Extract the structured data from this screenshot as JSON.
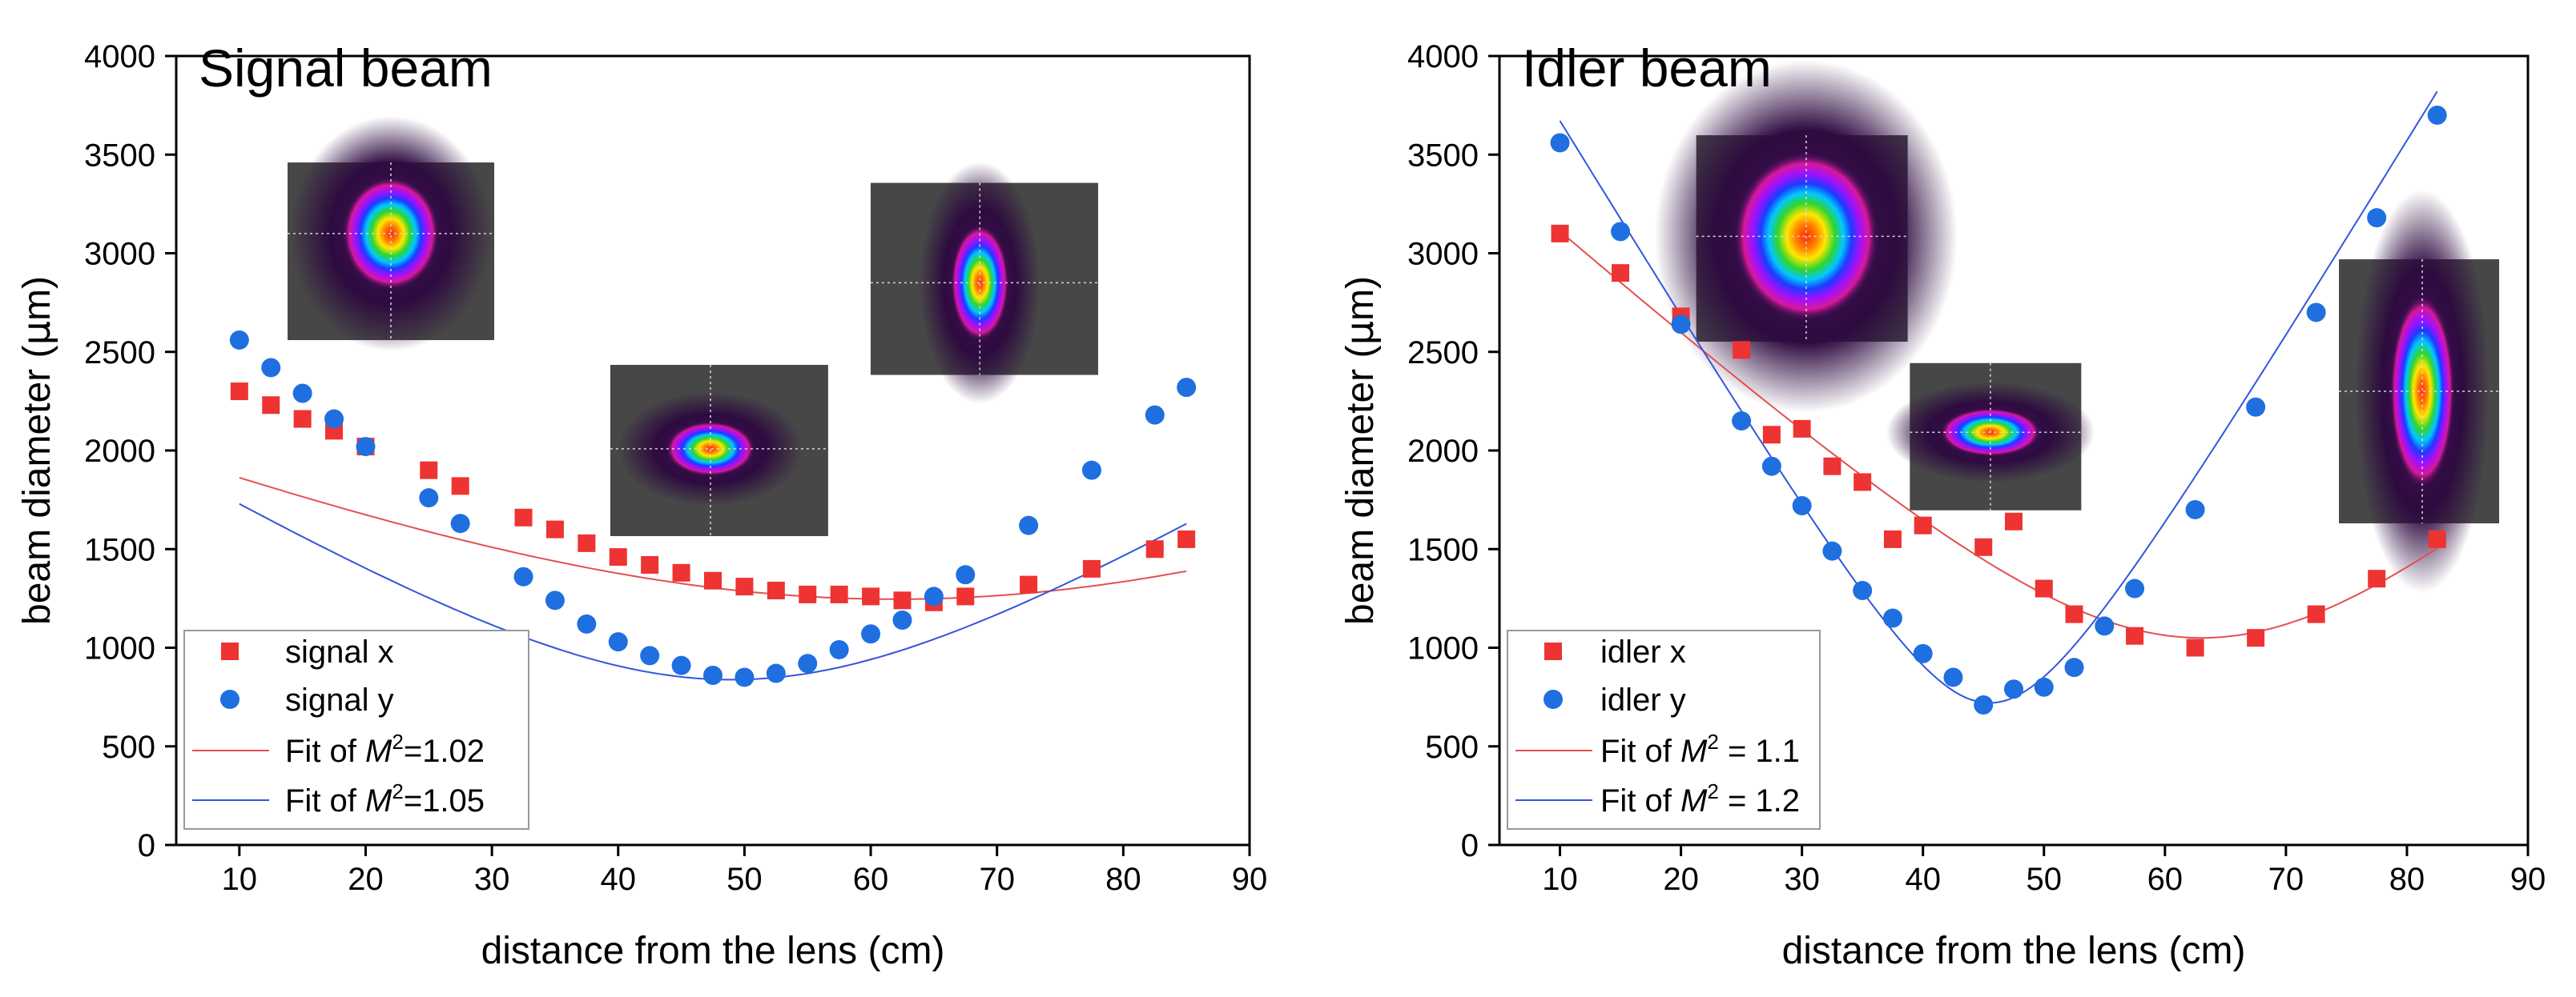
{
  "figure_title": "",
  "colors": {
    "signal_x": "#ee3333",
    "signal_y": "#1f6fe0",
    "fit_x": "#e35050",
    "fit_y": "#3355dd",
    "inset_bg": "#474747"
  },
  "chart_data": [
    {
      "type": "scatter",
      "title": "Signal beam",
      "xlabel": "distance from the lens (cm)",
      "ylabel_pre": "beam diameter (",
      "ylabel_mu": "μ",
      "ylabel_post": "m)",
      "xlim": [
        5,
        90
      ],
      "ylim": [
        0,
        4000
      ],
      "xticks": [
        10,
        20,
        30,
        40,
        50,
        60,
        70,
        80,
        90
      ],
      "yticks": [
        0,
        500,
        1000,
        1500,
        2000,
        2500,
        3000,
        3500,
        4000
      ],
      "x_tick_labels": [
        "10",
        "20",
        "30",
        "40",
        "50",
        "60",
        "70",
        "80",
        "90"
      ],
      "y_tick_labels": [
        "0",
        "500",
        "1000",
        "1500",
        "2000",
        "2500",
        "3000",
        "3500",
        "4000"
      ],
      "series": [
        {
          "name": "signal x",
          "marker": "square",
          "color": "#ee3333",
          "x": [
            10,
            12.5,
            15,
            17.5,
            20,
            25,
            27.5,
            32.5,
            35,
            37.5,
            40,
            42.5,
            45,
            47.5,
            50,
            52.5,
            55,
            57.5,
            60,
            62.5,
            65,
            67.5,
            72.5,
            77.5,
            82.5,
            85
          ],
          "y": [
            2300,
            2230,
            2160,
            2100,
            2020,
            1900,
            1820,
            1660,
            1600,
            1530,
            1460,
            1420,
            1380,
            1340,
            1310,
            1290,
            1270,
            1270,
            1260,
            1240,
            1230,
            1260,
            1320,
            1400,
            1500,
            1550
          ]
        },
        {
          "name": "signal y",
          "marker": "circle",
          "color": "#1f6fe0",
          "x": [
            10,
            12.5,
            15,
            17.5,
            20,
            25,
            27.5,
            32.5,
            35,
            37.5,
            40,
            42.5,
            45,
            47.5,
            50,
            52.5,
            55,
            57.5,
            60,
            62.5,
            65,
            67.5,
            72.5,
            77.5,
            82.5,
            85
          ],
          "y": [
            2560,
            2420,
            2290,
            2160,
            2020,
            1760,
            1630,
            1360,
            1240,
            1120,
            1030,
            960,
            910,
            860,
            850,
            870,
            920,
            990,
            1070,
            1140,
            1260,
            1370,
            1620,
            1900,
            2180,
            2320
          ]
        }
      ],
      "fits": [
        {
          "name": "Fit of M²=1.02",
          "label_pre": "Fit of ",
          "label_M": "M",
          "label_sup": "2",
          "label_post": "=1.02",
          "color": "#e35050",
          "w0": 1246,
          "z0": 62,
          "zr": 46.8,
          "x_range": [
            10,
            85
          ]
        },
        {
          "name": "Fit of M²=1.05",
          "label_pre": "Fit of ",
          "label_M": "M",
          "label_sup": "2",
          "label_post": "=1.05",
          "color": "#3355dd",
          "w0": 838,
          "z0": 49,
          "zr": 21.6,
          "x_range": [
            10,
            85
          ]
        }
      ],
      "legend": [
        "signal x",
        "signal y",
        "Fit of M²=1.02",
        "Fit of M²=1.05"
      ],
      "legend_position": "bottom-left",
      "insets": [
        {
          "name": "beam-profile-near",
          "center_x": 22,
          "center_y": 3010,
          "spot_rx": 60,
          "spot_ry": 70,
          "spot_x": 0.5,
          "spot_y": 0.4
        },
        {
          "name": "beam-profile-waist",
          "center_x": 48,
          "center_y": 2000,
          "spot_rx": 55,
          "spot_ry": 34,
          "spot_x": 0.46,
          "spot_y": 0.49
        },
        {
          "name": "beam-profile-far",
          "center_x": 69,
          "center_y": 2870,
          "spot_rx": 36,
          "spot_ry": 72,
          "spot_x": 0.48,
          "spot_y": 0.52
        }
      ]
    },
    {
      "type": "scatter",
      "title": "Idler beam",
      "xlabel": "distance from the lens (cm)",
      "ylabel_pre": "beam diameter (",
      "ylabel_mu": "μ",
      "ylabel_post": "m)",
      "xlim": [
        5,
        90
      ],
      "ylim": [
        0,
        4000
      ],
      "xticks": [
        10,
        20,
        30,
        40,
        50,
        60,
        70,
        80,
        90
      ],
      "yticks": [
        0,
        500,
        1000,
        1500,
        2000,
        2500,
        3000,
        3500,
        4000
      ],
      "x_tick_labels": [
        "10",
        "20",
        "30",
        "40",
        "50",
        "60",
        "70",
        "80",
        "90"
      ],
      "y_tick_labels": [
        "0",
        "500",
        "1000",
        "1500",
        "2000",
        "2500",
        "3000",
        "3500",
        "4000"
      ],
      "series": [
        {
          "name": "idler x",
          "marker": "square",
          "color": "#ee3333",
          "x": [
            10,
            15,
            20,
            25,
            27.5,
            30,
            32.5,
            35,
            37.5,
            40,
            45,
            47.5,
            50,
            52.5,
            57.5,
            62.5,
            67.5,
            72.5,
            77.5,
            82.5
          ],
          "y": [
            3100,
            2900,
            2680,
            2510,
            2080,
            2110,
            1920,
            1840,
            1550,
            1620,
            1510,
            1640,
            1300,
            1170,
            1060,
            1000,
            1050,
            1170,
            1350,
            1550
          ]
        },
        {
          "name": "idler y",
          "marker": "circle",
          "color": "#1f6fe0",
          "x": [
            10,
            15,
            20,
            25,
            27.5,
            30,
            32.5,
            35,
            37.5,
            40,
            42.5,
            45,
            47.5,
            50,
            52.5,
            55,
            57.5,
            62.5,
            67.5,
            72.5,
            77.5,
            82.5
          ],
          "y": [
            3560,
            3110,
            2640,
            2150,
            1920,
            1720,
            1490,
            1290,
            1150,
            970,
            850,
            710,
            790,
            800,
            900,
            1110,
            1300,
            1700,
            2220,
            2700,
            3180,
            3700
          ]
        }
      ],
      "fits": [
        {
          "name": "Fit of M² = 1.1",
          "label_pre": "Fit of ",
          "label_M": "M",
          "label_sup": "2",
          "label_post": " = 1.1",
          "color": "#e35050",
          "w0": 1050,
          "z0": 63,
          "zr": 19.0,
          "x_range": [
            10,
            82.5
          ]
        },
        {
          "name": "Fit of M² = 1.2",
          "label_pre": "Fit of ",
          "label_M": "M",
          "label_sup": "2",
          "label_post": " = 1.2",
          "color": "#3355dd",
          "w0": 720,
          "z0": 45.5,
          "zr": 7.1,
          "x_range": [
            10,
            82.5
          ]
        }
      ],
      "legend": [
        "idler x",
        "idler y",
        "Fit of M² = 1.1",
        "Fit of M² = 1.2"
      ],
      "legend_position": "bottom-left",
      "insets": [
        {
          "name": "beam-profile-near",
          "center_x": 30,
          "center_y": 3075,
          "spot_rx": 90,
          "spot_ry": 105,
          "spot_x": 0.52,
          "spot_y": 0.49
        },
        {
          "name": "beam-profile-waist",
          "center_x": 46,
          "center_y": 2070,
          "spot_rx": 62,
          "spot_ry": 30,
          "spot_x": 0.47,
          "spot_y": 0.47
        },
        {
          "name": "beam-profile-far",
          "center_x": 81,
          "center_y": 2300,
          "spot_rx": 40,
          "spot_ry": 120,
          "spot_x": 0.52,
          "spot_y": 0.5
        }
      ]
    }
  ]
}
